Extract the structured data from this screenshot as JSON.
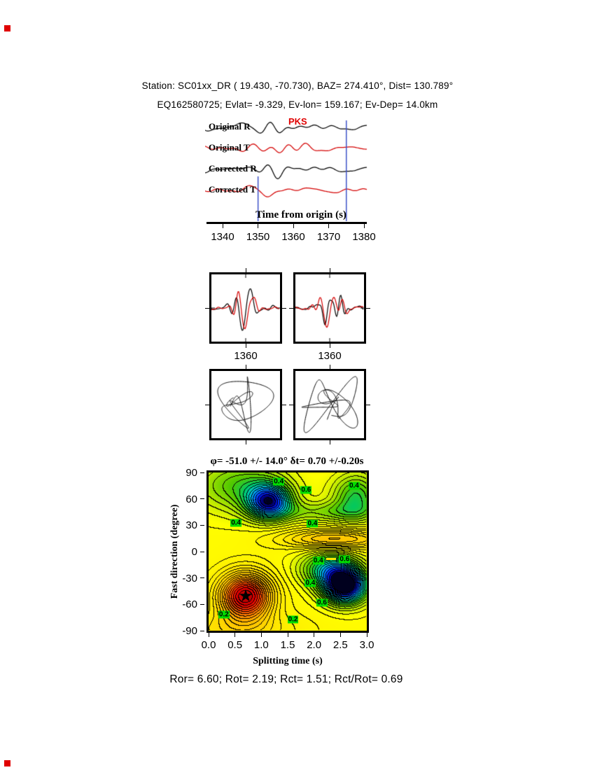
{
  "header": {
    "line1": "Station: SC01xx_DR ( 19.430, -70.730), BAZ= 274.410°, Dist= 130.789°",
    "line2": "EQ162580725; Evlat= -9.329, Ev-lon= 159.167; Ev-Dep= 14.0km"
  },
  "footer": {
    "stats": "Ror= 6.60; Rot= 2.19; Rct= 1.51; Rct/Rot= 0.69"
  },
  "colors": {
    "trace_black": "#000000",
    "trace_red": "#d40000",
    "window_marker_blue": "#3c50c8",
    "contour_label_bg": "#00dd00",
    "phase_label_red": "#e00000",
    "dash_yellow": "#ffe600"
  },
  "chart_data": [
    {
      "type": "line",
      "panel": "seismogram-traces",
      "traces": [
        {
          "label": "Original R",
          "color": "black"
        },
        {
          "label": "Original T",
          "color": "red"
        },
        {
          "label": "Corrected R",
          "color": "black"
        },
        {
          "label": "Corrected T",
          "color": "red"
        }
      ],
      "phase_label": "PKS",
      "xlabel": "Time from origin (s)",
      "xlim": [
        1335,
        1381
      ],
      "xticks": [
        1340,
        1350,
        1360,
        1370,
        1380
      ],
      "window_markers_s": [
        1350,
        1375
      ]
    },
    {
      "type": "line",
      "panel": "fast-slow-waveform-comparison",
      "series_colors": [
        "black",
        "red"
      ],
      "boxes": [
        {
          "xtick": "1360"
        },
        {
          "xtick": "1360"
        }
      ]
    },
    {
      "type": "scatter",
      "panel": "particle-motion-hodograms",
      "boxes": 2
    },
    {
      "type": "heatmap",
      "panel": "splitting-error-surface",
      "title": "φ= -51.0 +/- 14.0° δt= 0.70 +/-0.20s",
      "xlabel": "Splitting time (s)",
      "ylabel": "Fast direction (degree)",
      "xlim": [
        0.0,
        3.0
      ],
      "ylim": [
        -90,
        90
      ],
      "xticks": [
        "0.0",
        "0.5",
        "1.0",
        "1.5",
        "2.0",
        "2.5",
        "3.0"
      ],
      "yticks": [
        "90",
        "60",
        "30",
        "0",
        "-30",
        "-60",
        "-90"
      ],
      "grid": false,
      "best_fit": {
        "phi_deg": -51.0,
        "phi_err_deg": 14.0,
        "dt_s": 0.7,
        "dt_err_s": 0.2
      },
      "marker": "★",
      "contour_labels": [
        {
          "v": "0.4",
          "dt": 1.33,
          "phi": 80
        },
        {
          "v": "0.6",
          "dt": 1.85,
          "phi": 70
        },
        {
          "v": "0.4",
          "dt": 2.76,
          "phi": 75
        },
        {
          "v": "0.4",
          "dt": 0.52,
          "phi": 33
        },
        {
          "v": "0.4",
          "dt": 1.97,
          "phi": 32
        },
        {
          "v": "0.4",
          "dt": 2.08,
          "phi": -10
        },
        {
          "v": "0.6",
          "dt": 2.58,
          "phi": -9
        },
        {
          "v": "0.4",
          "dt": 1.93,
          "phi": -36
        },
        {
          "v": "0.6",
          "dt": 2.15,
          "phi": -58
        },
        {
          "v": "0.2",
          "dt": 0.29,
          "phi": -72
        },
        {
          "v": "0.2",
          "dt": 1.6,
          "phi": -77
        }
      ]
    }
  ]
}
